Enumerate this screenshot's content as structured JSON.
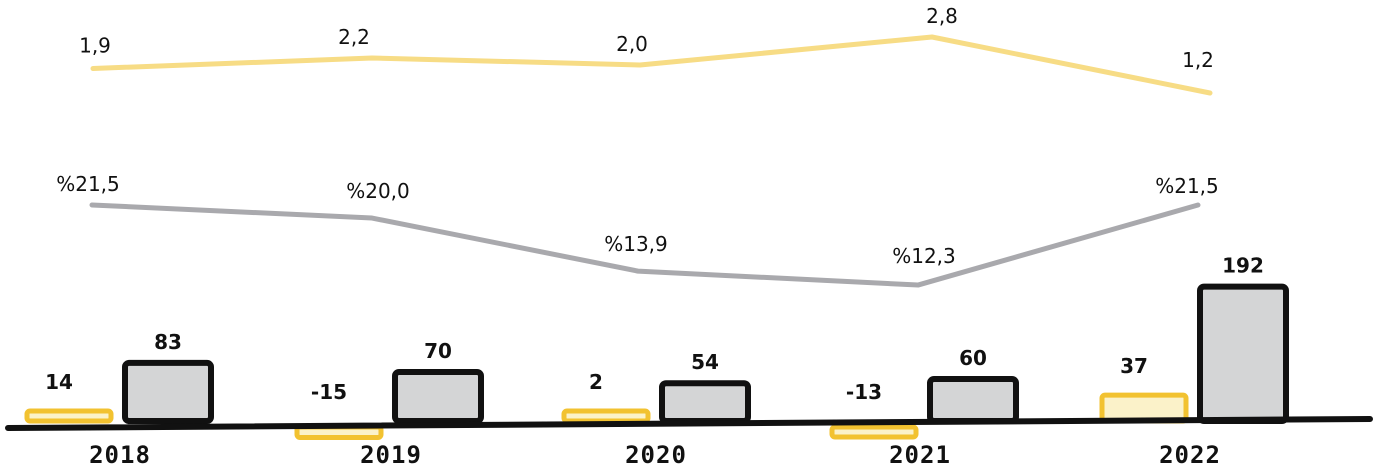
{
  "chart_data": {
    "type": "bar+line",
    "categories": [
      "2018",
      "2019",
      "2020",
      "2021",
      "2022"
    ],
    "bars": {
      "series": [
        {
          "values": [
            14,
            -15,
            2,
            -13,
            37
          ],
          "labels": [
            "14",
            "-15",
            "2",
            "-13",
            "37"
          ],
          "color": "#F2C230",
          "fill": "#FBF2C9"
        },
        {
          "values": [
            83,
            70,
            54,
            60,
            192
          ],
          "labels": [
            "83",
            "70",
            "54",
            "60",
            "192"
          ],
          "color": "#111111",
          "fill": "#D4D5D6"
        }
      ]
    },
    "lines": [
      {
        "values": [
          1.9,
          2.2,
          2.0,
          2.8,
          1.2
        ],
        "labels": [
          "1,9",
          "2,2",
          "2,0",
          "2,8",
          "1,2"
        ],
        "color": "#F7DC85"
      },
      {
        "values": [
          21.5,
          20.0,
          13.9,
          12.3,
          21.5
        ],
        "labels": [
          "%21,5",
          "%20,0",
          "%13,9",
          "%12,3",
          "%21,5"
        ],
        "color": "#A9A9AD"
      }
    ],
    "grid": false,
    "legend": "none"
  }
}
